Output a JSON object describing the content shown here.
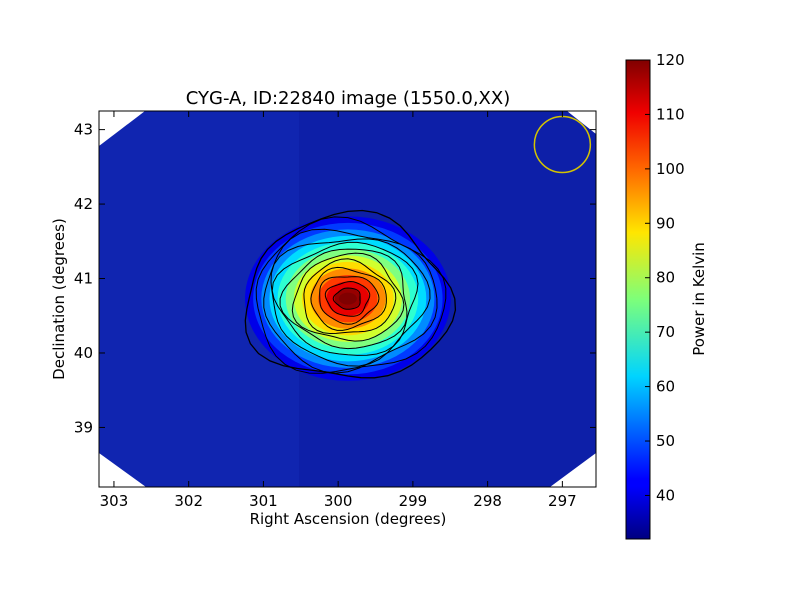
{
  "chart_data": {
    "type": "heatmap",
    "title": "CYG-A, ID:22840 image (1550.0,XX)",
    "xlabel": "Right Ascension (degrees)",
    "ylabel": "Declination (degrees)",
    "xlim": [
      303.2,
      296.55
    ],
    "ylim": [
      38.2,
      43.25
    ],
    "x_ticks": [
      303,
      302,
      301,
      300,
      299,
      298,
      297
    ],
    "y_ticks": [
      39,
      40,
      41,
      42,
      43
    ],
    "colorbar": {
      "label": "Power in Kelvin",
      "range": [
        32,
        120
      ],
      "ticks": [
        40,
        50,
        60,
        70,
        80,
        90,
        100,
        110,
        120
      ],
      "colormap": "jet"
    },
    "source": {
      "ra": 299.87,
      "dec": 40.73,
      "peak_kelvin": 120,
      "background_kelvin": 34
    },
    "beam_marker": {
      "ra": 297.0,
      "dec": 42.8,
      "color": "#d4c400"
    },
    "contour_levels": [
      38,
      45,
      52,
      59,
      66,
      73,
      80,
      87,
      94,
      101,
      108,
      115
    ],
    "grid": false
  }
}
